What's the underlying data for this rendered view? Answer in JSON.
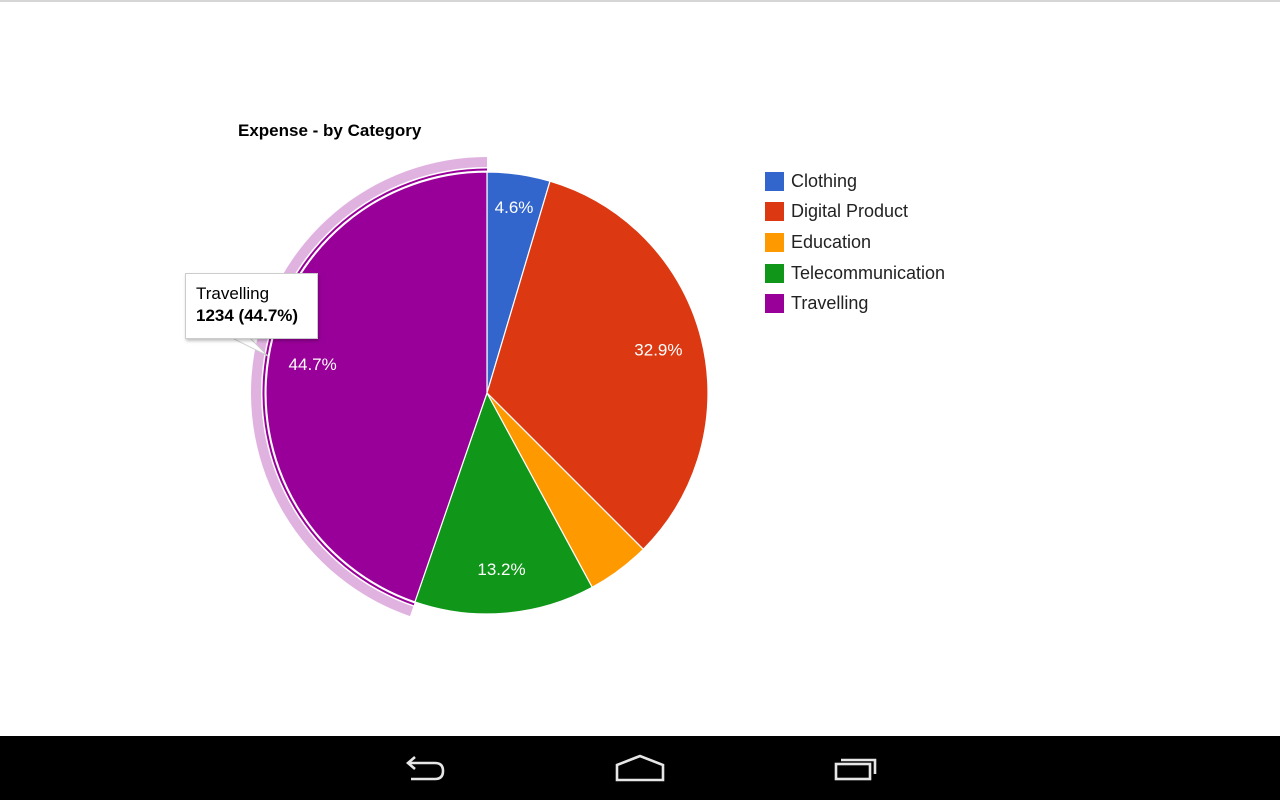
{
  "chart_data": {
    "type": "pie",
    "title": "Expense - by Category",
    "legend_position": "right",
    "slices": [
      {
        "label": "Clothing",
        "value": 127,
        "percent_label": "4.6%",
        "color": "#3366cc"
      },
      {
        "label": "Digital Product",
        "value": 908,
        "percent_label": "32.9%",
        "color": "#dc3912"
      },
      {
        "label": "Education",
        "value": 127,
        "percent_label": "4.6%",
        "color": "#ff9900"
      },
      {
        "label": "Telecommunication",
        "value": 364,
        "percent_label": "13.2%",
        "color": "#109618"
      },
      {
        "label": "Travelling",
        "value": 1234,
        "percent_label": "44.7%",
        "color": "#990099"
      }
    ],
    "highlighted_slice": "Travelling"
  },
  "tooltip": {
    "name": "Travelling",
    "value_text": "1234 (44.7%)"
  },
  "nav": {
    "back": "back-icon",
    "home": "home-icon",
    "recents": "recents-icon"
  }
}
